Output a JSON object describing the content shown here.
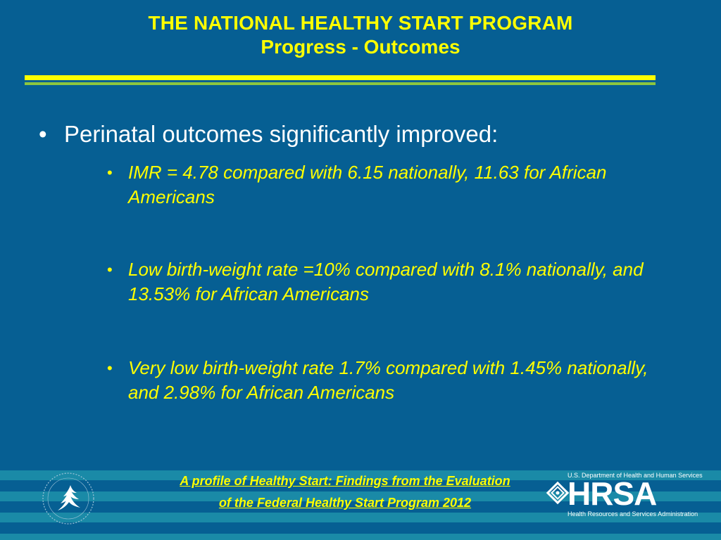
{
  "slide": {
    "title_line1": "THE NATIONAL HEALTHY START PROGRAM",
    "title_line2": "Progress - Outcomes",
    "main_bullet": "Perinatal outcomes significantly improved:",
    "sub_bullets": [
      "IMR = 4.78 compared with 6.15 nationally, 11.63 for African Americans",
      "Low birth-weight rate =10% compared with 8.1% nationally, and 13.53% for African Americans",
      "Very low birth-weight rate 1.7% compared with 1.45% nationally, and 2.98% for African Americans"
    ],
    "citation_line1": "A profile of Healthy Start: Findings  from the Evaluation",
    "citation_line2": "of the Federal Healthy Start Program 2012"
  },
  "logos": {
    "hhs": "hhs-eagle-seal",
    "hrsa_top_text": "U.S. Department of Health and Human Services",
    "hrsa_word": "HRSA",
    "hrsa_bottom_text": "Health Resources and Services Administration"
  },
  "colors": {
    "background": "#065f93",
    "title": "#ffff00",
    "sub_text": "#ffff00",
    "main_text": "#ffffff",
    "rule_top": "#ffff00",
    "rule_bottom": "#8cc63f",
    "stripe": "#1a8aa7"
  }
}
